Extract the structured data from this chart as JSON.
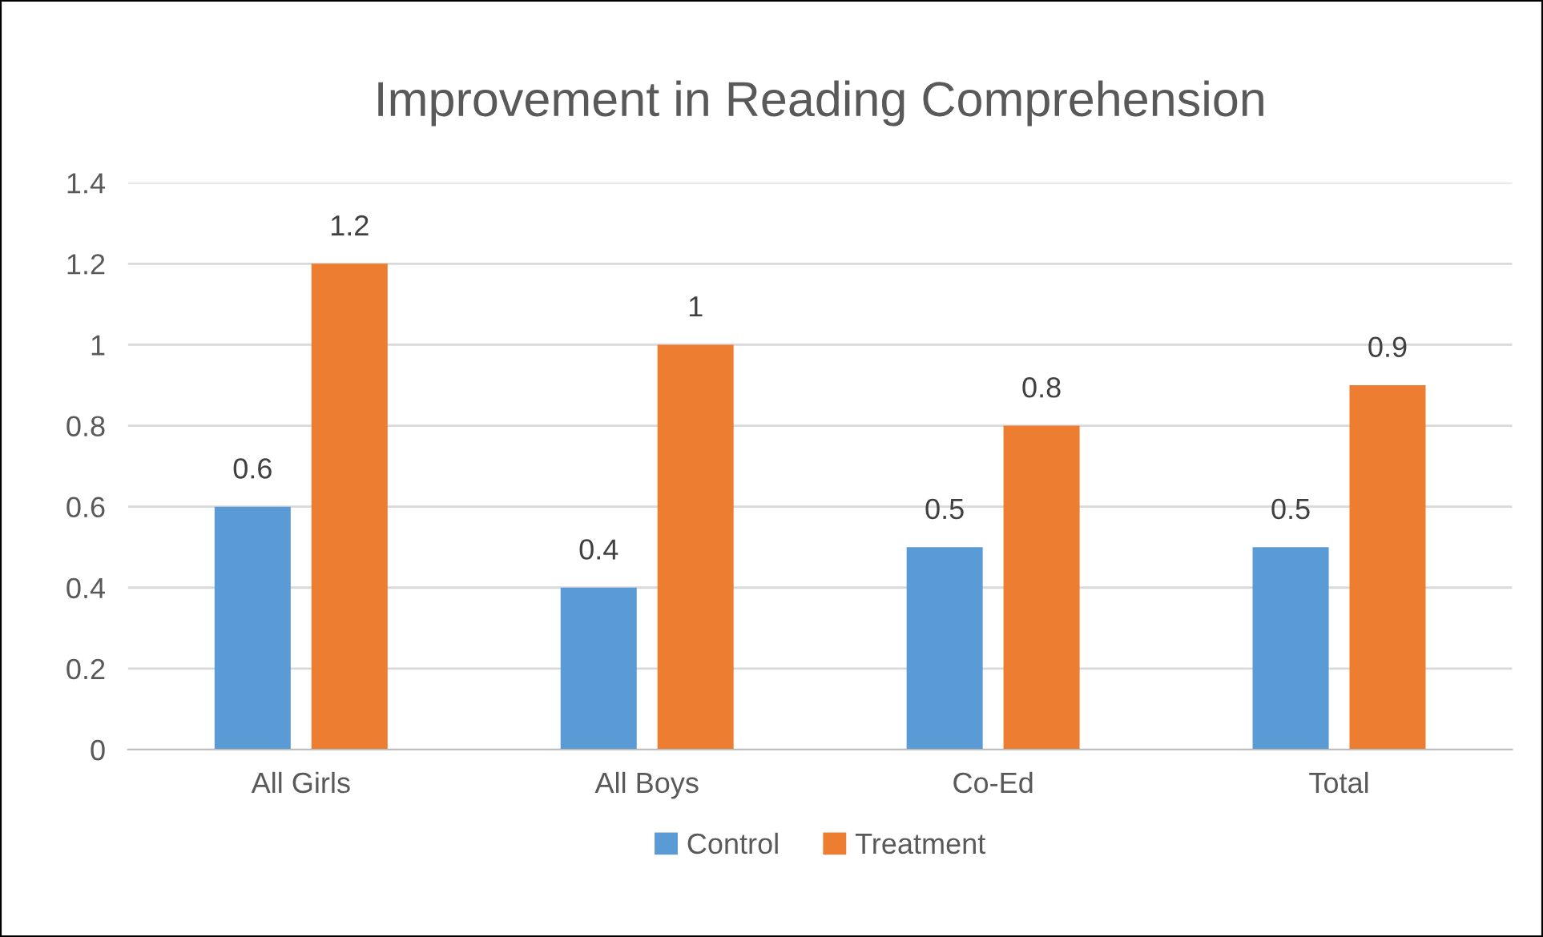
{
  "chart_data": {
    "type": "bar",
    "title": "Improvement in Reading Comprehension",
    "categories": [
      "All Girls",
      "All Boys",
      "Co-Ed",
      "Total"
    ],
    "series": [
      {
        "name": "Control",
        "color": "#5b9bd5",
        "values": [
          0.6,
          0.4,
          0.5,
          0.5
        ]
      },
      {
        "name": "Treatment",
        "color": "#ed7d31",
        "values": [
          1.2,
          1,
          0.8,
          0.9
        ]
      }
    ],
    "ylim": [
      0,
      1.4
    ],
    "yticks": [
      0,
      0.2,
      0.4,
      0.6,
      0.8,
      1,
      1.2,
      1.4
    ],
    "grid": "y",
    "legend": "bottom",
    "data_labels": true
  }
}
